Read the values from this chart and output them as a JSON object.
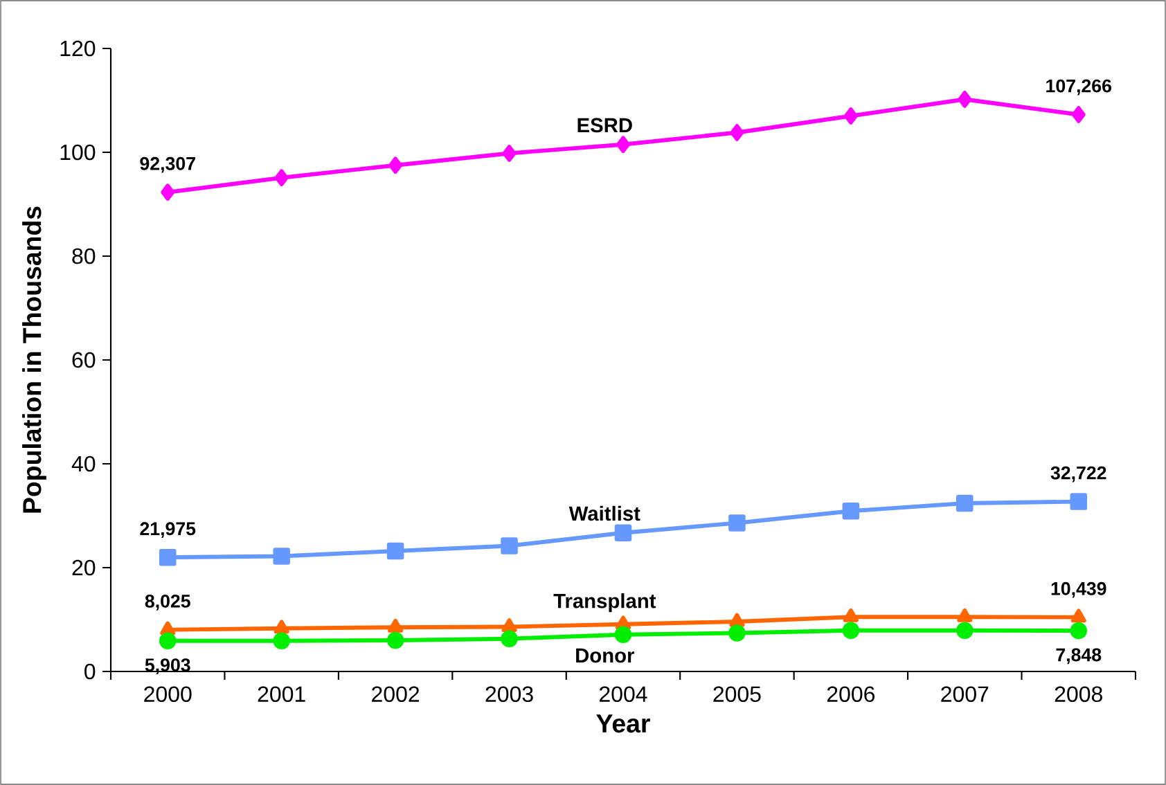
{
  "chart_data": {
    "type": "line",
    "xlabel": "Year",
    "ylabel": "Population in Thousands",
    "categories": [
      "2000",
      "2001",
      "2002",
      "2003",
      "2004",
      "2005",
      "2006",
      "2007",
      "2008"
    ],
    "ylim": [
      0,
      120
    ],
    "yticks": [
      0,
      20,
      40,
      60,
      80,
      100,
      120
    ],
    "grid": false,
    "legend": false,
    "line_style": "solid",
    "series": [
      {
        "name": "ESRD",
        "color": "#ff00ff",
        "marker": "diamond",
        "values": [
          92.307,
          95.1,
          97.5,
          99.8,
          101.5,
          103.8,
          107.0,
          110.2,
          107.266
        ]
      },
      {
        "name": "Waitlist",
        "color": "#6699ff",
        "marker": "square",
        "values": [
          21.975,
          22.2,
          23.2,
          24.2,
          26.7,
          28.6,
          30.9,
          32.4,
          32.722
        ]
      },
      {
        "name": "Transplant",
        "color": "#ff6600",
        "marker": "triangle",
        "values": [
          8.025,
          8.3,
          8.5,
          8.6,
          9.1,
          9.6,
          10.5,
          10.5,
          10.439
        ]
      },
      {
        "name": "Donor",
        "color": "#00ee00",
        "marker": "circle",
        "values": [
          5.903,
          5.9,
          6.0,
          6.3,
          7.1,
          7.4,
          7.9,
          7.9,
          7.848
        ]
      }
    ],
    "annotations": [
      {
        "text": "92,307",
        "x": "2000",
        "y": 92.307
      },
      {
        "text": "107,266",
        "x": "2008",
        "y": 107.266
      },
      {
        "text": "21,975",
        "x": "2000",
        "y": 21.975
      },
      {
        "text": "32,722",
        "x": "2008",
        "y": 32.722
      },
      {
        "text": "8,025",
        "x": "2000",
        "y": 8.025
      },
      {
        "text": "10,439",
        "x": "2008",
        "y": 10.439
      },
      {
        "text": "5,903",
        "x": "2000",
        "y": 5.903
      },
      {
        "text": "7,848",
        "x": "2008",
        "y": 7.848
      }
    ]
  }
}
